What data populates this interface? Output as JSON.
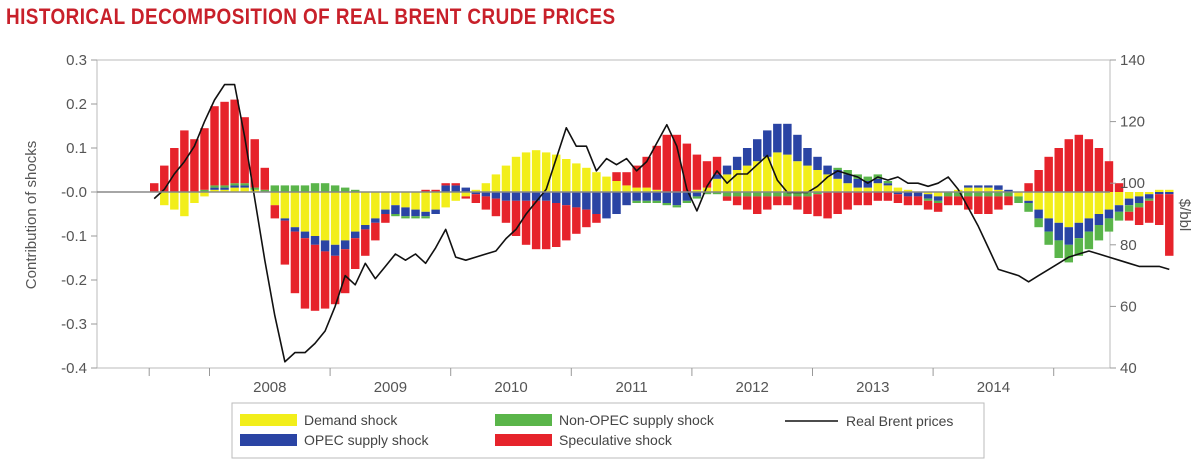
{
  "chart_data": {
    "type": "bar",
    "title": "HISTORICAL DECOMPOSITION OF REAL BRENT CRUDE PRICES",
    "ylabel": "Contribution of shocks",
    "y2label": "$/bbl",
    "ylim": [
      -0.4,
      0.3
    ],
    "y2lim": [
      40,
      140
    ],
    "yticks": [
      "0.3",
      "0.2",
      "0.1",
      "-0.0",
      "-0.1",
      "-0.2",
      "-0.3",
      "-0.4"
    ],
    "yticks_values": [
      0.3,
      0.2,
      0.1,
      0.0,
      -0.1,
      -0.2,
      -0.3,
      -0.4
    ],
    "y2ticks": [
      "140",
      "120",
      "100",
      "80",
      "60",
      "40"
    ],
    "y2ticks_values": [
      140,
      120,
      100,
      80,
      60,
      40
    ],
    "xticks": [
      "2008",
      "2009",
      "2010",
      "2011",
      "2012",
      "2013",
      "2014"
    ],
    "x_start": "2007-07",
    "stacked": true,
    "legend_position": "bottom",
    "colors": {
      "demand": "#f2ee1a",
      "opec": "#2a44a4",
      "nonopec": "#5ab54a",
      "speculative": "#e6232b",
      "line": "#111111",
      "zero_line": "#888888"
    },
    "series": [
      {
        "name": "Demand shock",
        "key": "demand",
        "values": [
          0.0,
          -0.03,
          -0.04,
          -0.055,
          -0.025,
          -0.01,
          0.005,
          0.005,
          0.01,
          0.01,
          0.005,
          0.0,
          -0.03,
          -0.06,
          -0.08,
          -0.09,
          -0.1,
          -0.11,
          -0.12,
          -0.11,
          -0.09,
          -0.075,
          -0.06,
          -0.04,
          -0.03,
          -0.035,
          -0.04,
          -0.045,
          -0.04,
          -0.035,
          -0.02,
          -0.01,
          0.005,
          0.02,
          0.04,
          0.06,
          0.08,
          0.09,
          0.095,
          0.09,
          0.085,
          0.075,
          0.065,
          0.055,
          0.045,
          0.035,
          0.025,
          0.015,
          0.01,
          0.01,
          0.005,
          0.0,
          0.0,
          0.0,
          0.005,
          0.01,
          0.03,
          0.04,
          0.05,
          0.06,
          0.07,
          0.08,
          0.09,
          0.085,
          0.07,
          0.06,
          0.05,
          0.04,
          0.03,
          0.02,
          0.01,
          0.01,
          0.02,
          0.015,
          0.01,
          0.005,
          0.0,
          -0.005,
          -0.01,
          0.0,
          0.005,
          0.01,
          0.01,
          0.01,
          0.005,
          0.0,
          -0.01,
          -0.02,
          -0.04,
          -0.06,
          -0.07,
          -0.08,
          -0.07,
          -0.06,
          -0.05,
          -0.04,
          -0.03,
          -0.015,
          -0.01,
          -0.005,
          0.005,
          0.005
        ]
      },
      {
        "name": "OPEC supply shock",
        "key": "opec",
        "values": [
          0.0,
          0.0,
          0.0,
          0.0,
          0.0,
          0.0,
          0.005,
          0.005,
          0.005,
          0.005,
          0.0,
          0.0,
          0.0,
          -0.005,
          -0.01,
          -0.015,
          -0.02,
          -0.025,
          -0.025,
          -0.02,
          -0.015,
          -0.01,
          -0.01,
          -0.01,
          -0.02,
          -0.02,
          -0.015,
          -0.01,
          -0.01,
          0.015,
          0.015,
          0.01,
          -0.005,
          -0.01,
          -0.015,
          -0.02,
          -0.02,
          -0.02,
          -0.02,
          -0.02,
          -0.025,
          -0.03,
          -0.035,
          -0.04,
          -0.05,
          -0.06,
          -0.05,
          -0.03,
          -0.02,
          -0.02,
          -0.02,
          -0.025,
          -0.03,
          -0.02,
          -0.01,
          0.0,
          0.01,
          0.02,
          0.03,
          0.04,
          0.05,
          0.06,
          0.065,
          0.07,
          0.06,
          0.04,
          0.03,
          0.02,
          0.02,
          0.02,
          0.02,
          0.015,
          0.01,
          0.005,
          -0.005,
          -0.01,
          -0.01,
          -0.01,
          -0.01,
          0.0,
          0.0,
          0.005,
          0.005,
          0.005,
          0.01,
          0.005,
          0.0,
          -0.005,
          -0.02,
          -0.03,
          -0.04,
          -0.04,
          -0.035,
          -0.03,
          -0.025,
          -0.02,
          -0.015,
          -0.015,
          -0.015,
          -0.01,
          -0.005,
          -0.005
        ]
      },
      {
        "name": "Non-OPEC supply shock",
        "key": "nonopec",
        "values": [
          0.0,
          0.0,
          0.0,
          0.0,
          0.0,
          0.005,
          0.005,
          0.005,
          0.005,
          0.005,
          0.005,
          0.005,
          0.015,
          0.015,
          0.015,
          0.015,
          0.02,
          0.02,
          0.015,
          0.01,
          0.005,
          0.0,
          0.0,
          0.0,
          -0.005,
          -0.005,
          -0.005,
          -0.005,
          0.0,
          0.0,
          0.0,
          0.0,
          0.0,
          0.0,
          0.0,
          0.0,
          0.0,
          0.0,
          0.0,
          0.0,
          0.0,
          0.0,
          0.0,
          0.0,
          0.0,
          0.0,
          0.0,
          0.0,
          -0.005,
          -0.005,
          -0.005,
          -0.005,
          -0.005,
          -0.005,
          -0.005,
          -0.005,
          -0.005,
          -0.01,
          -0.01,
          -0.01,
          -0.01,
          -0.01,
          -0.01,
          -0.01,
          -0.01,
          -0.01,
          -0.005,
          0.0,
          0.005,
          0.01,
          0.01,
          0.01,
          0.01,
          0.005,
          0.0,
          0.0,
          0.0,
          -0.005,
          -0.005,
          -0.01,
          -0.01,
          -0.01,
          -0.01,
          -0.01,
          -0.01,
          -0.01,
          -0.015,
          -0.02,
          -0.02,
          -0.03,
          -0.04,
          -0.04,
          -0.04,
          -0.04,
          -0.035,
          -0.03,
          -0.02,
          -0.015,
          -0.01,
          -0.005,
          0.0,
          0.0
        ]
      },
      {
        "name": "Speculative shock",
        "key": "speculative",
        "values": [
          0.02,
          0.06,
          0.1,
          0.14,
          0.12,
          0.14,
          0.18,
          0.19,
          0.19,
          0.15,
          0.11,
          0.05,
          -0.03,
          -0.1,
          -0.14,
          -0.16,
          -0.15,
          -0.13,
          -0.11,
          -0.1,
          -0.07,
          -0.06,
          -0.04,
          -0.02,
          0.0,
          0.0,
          0.0,
          0.005,
          0.005,
          0.005,
          0.005,
          -0.005,
          -0.02,
          -0.03,
          -0.04,
          -0.05,
          -0.08,
          -0.1,
          -0.11,
          -0.11,
          -0.1,
          -0.08,
          -0.06,
          -0.04,
          -0.02,
          0.0,
          0.02,
          0.03,
          0.05,
          0.07,
          0.1,
          0.13,
          0.13,
          0.11,
          0.08,
          0.06,
          0.04,
          -0.01,
          -0.02,
          -0.03,
          -0.04,
          -0.03,
          -0.02,
          -0.02,
          -0.03,
          -0.04,
          -0.05,
          -0.06,
          -0.05,
          -0.04,
          -0.03,
          -0.03,
          -0.02,
          -0.02,
          -0.02,
          -0.02,
          -0.02,
          -0.02,
          -0.02,
          -0.02,
          -0.02,
          -0.03,
          -0.04,
          -0.04,
          -0.03,
          -0.02,
          0.0,
          0.02,
          0.05,
          0.08,
          0.1,
          0.12,
          0.13,
          0.12,
          0.1,
          0.07,
          0.02,
          -0.02,
          -0.04,
          -0.05,
          -0.07,
          -0.14
        ]
      }
    ],
    "line_series": {
      "name": "Real Brent prices",
      "key": "line",
      "values": [
        95,
        98,
        103,
        107,
        112,
        120,
        127,
        132,
        132,
        115,
        95,
        75,
        57,
        42,
        45,
        45,
        48,
        52,
        60,
        70,
        67,
        74,
        69,
        73,
        77,
        75,
        77,
        74,
        79,
        85,
        76,
        75,
        76,
        77,
        78,
        82,
        85,
        90,
        94,
        98,
        108,
        118,
        112,
        112,
        104,
        108,
        106,
        108,
        104,
        107,
        113,
        119,
        112,
        98,
        91,
        99,
        104,
        100,
        103,
        103,
        106,
        109,
        101,
        97,
        97,
        97,
        99,
        102,
        104,
        103,
        102,
        100,
        102,
        101,
        102,
        100,
        100,
        99,
        100,
        102,
        98,
        92,
        86,
        79,
        72,
        71,
        70,
        68,
        70,
        72,
        74,
        76,
        77,
        78,
        77,
        76,
        75,
        74,
        73,
        73,
        73,
        72
      ]
    }
  }
}
